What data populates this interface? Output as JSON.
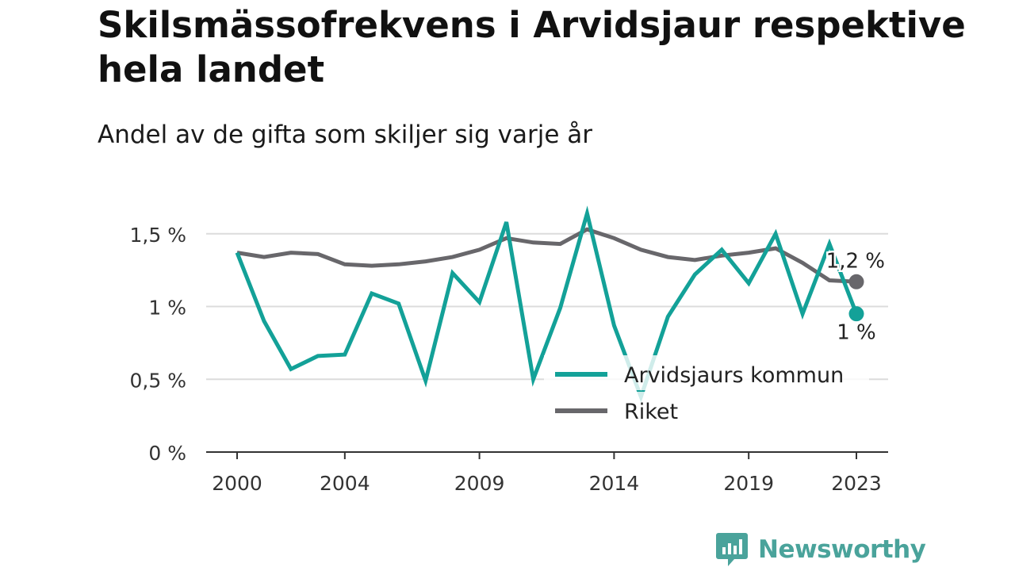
{
  "header": {
    "title": "Skilsmässofrekvens i Arvidsjaur respektive hela landet",
    "subtitle": "Andel av de gifta som skiljer sig varje år"
  },
  "brand": {
    "name": "Newsworthy",
    "icon": "newsworthy-logo-icon",
    "color": "#4aa39b"
  },
  "chart_data": {
    "type": "line",
    "title": "Skilsmässofrekvens i Arvidsjaur respektive hela landet",
    "subtitle": "Andel av de gifta som skiljer sig varje år",
    "xlabel": "",
    "ylabel": "",
    "x": [
      2000,
      2001,
      2002,
      2003,
      2004,
      2005,
      2006,
      2007,
      2008,
      2009,
      2010,
      2011,
      2012,
      2013,
      2014,
      2015,
      2016,
      2017,
      2018,
      2019,
      2020,
      2021,
      2022,
      2023
    ],
    "x_tick_values": [
      2000,
      2004,
      2009,
      2014,
      2019,
      2023
    ],
    "x_tick_labels": [
      "2000",
      "2004",
      "2009",
      "2014",
      "2019",
      "2023"
    ],
    "ylim": [
      0,
      1.7
    ],
    "y_tick_values": [
      0,
      0.5,
      1,
      1.5
    ],
    "y_tick_labels": [
      "0 %",
      "0,5 %",
      "1 %",
      "1,5 %"
    ],
    "grid": true,
    "legend_position": "bottom-right",
    "series": [
      {
        "name": "Arvidsjaurs kommun",
        "color": "#13a198",
        "values": [
          1.37,
          0.9,
          0.57,
          0.66,
          0.67,
          1.09,
          1.02,
          0.49,
          1.23,
          1.03,
          1.58,
          0.5,
          0.99,
          1.64,
          0.87,
          0.38,
          0.93,
          1.22,
          1.39,
          1.16,
          1.5,
          0.95,
          1.43,
          0.95
        ],
        "end_label": "1 %"
      },
      {
        "name": "Riket",
        "color": "#68676b",
        "values": [
          1.37,
          1.34,
          1.37,
          1.36,
          1.29,
          1.28,
          1.29,
          1.31,
          1.34,
          1.39,
          1.47,
          1.44,
          1.43,
          1.53,
          1.47,
          1.39,
          1.34,
          1.32,
          1.35,
          1.37,
          1.4,
          1.3,
          1.18,
          1.17
        ],
        "end_label": "1,2 %"
      }
    ]
  }
}
